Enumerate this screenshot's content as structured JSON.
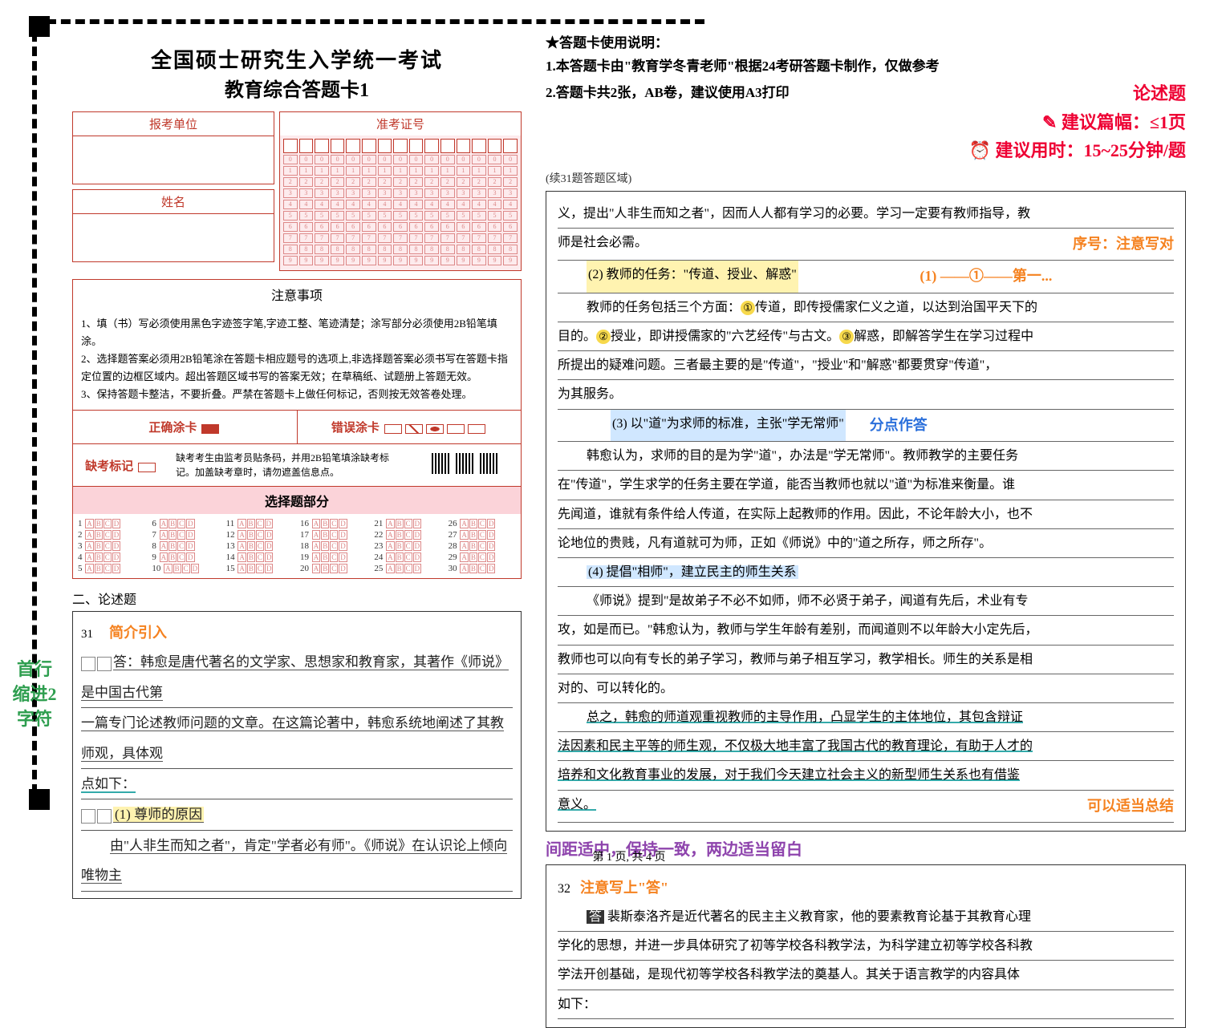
{
  "header": {
    "title_line1": "全国硕士研究生入学统一考试",
    "title_line2": "教育综合答题卡1"
  },
  "usage": {
    "star": "★答题卡使用说明：",
    "line1": "1.本答题卡由\"教育学冬青老师\"根据24考研答题卡制作，仅做参考",
    "line2": "2.答题卡共2张，AB卷，建议使用A3打印"
  },
  "annotations": {
    "essay_type": "论述题",
    "length_suggest": "建议篇幅：≤1页",
    "time_suggest": "建议用时：15~25分钟/题",
    "intro_label": "简介引入",
    "indent_label": "首行\n缩进2\n字符",
    "numbering_note": "序号：注意写对",
    "numbering_eg": "(1) ——①——第一...",
    "point_answer": "分点作答",
    "summary_ok": "可以适当总结",
    "margin_note": "间距适中，保持一致，两边适当留白",
    "write_da": "注意写上\"答\""
  },
  "form": {
    "unit_label": "报考单位",
    "exam_id_label": "准考证号",
    "name_label": "姓名"
  },
  "notice": {
    "title": "注意事项",
    "items": [
      "1、填（书）写必须使用黑色字迹签字笔,字迹工整、笔迹清楚；涂写部分必须使用2B铅笔填涂。",
      "2、选择题答案必须用2B铅笔涂在答题卡相应题号的选项上,非选择题答案必须书写在答题卡指定位置的边框区域内。超出答题区域书写的答案无效；在草稿纸、试题册上答题无效。",
      "3、保持答题卡整洁，不要折叠。严禁在答题卡上做任何标记，否则按无效答卷处理。"
    ]
  },
  "fill_example": {
    "correct": "正确涂卡",
    "wrong": "错误涂卡"
  },
  "absent": {
    "label": "缺考标记",
    "text": "缺考考生由监考员贴条码，并用2B铅笔填涂缺考标记。加盖缺考章时，请勿遮盖信息点。"
  },
  "choice_section": {
    "title": "选择题部分",
    "count": 30
  },
  "essay": {
    "section_label": "二、论述题",
    "q31": "31",
    "q32": "32",
    "continue_label": "(续31题答题区域)"
  },
  "handwritten_q31": {
    "l1": "答：韩愈是唐代著名的文学家、思想家和教育家，其著作《师说》是中国古代第",
    "l2": "一篇专门论述教师问题的文章。在这篇论著中，韩愈系统地阐述了其教师观，具体观",
    "l3": "点如下：",
    "p1": "(1) 尊师的原因",
    "l4": "由\"人非生而知之者\"，肯定\"学者必有师\"。《师说》在认识论上倾向唯物主"
  },
  "handwritten_cont": {
    "l1": "义，提出\"人非生而知之者\"，因而人人都有学习的必要。学习一定要有教师指导，教",
    "l2": "师是社会必需。",
    "p2": "(2) 教师的任务：\"传道、授业、解惑\"",
    "l3": "教师的任务包括三个方面：①传道，即传授儒家仁义之道，以达到治国平天下的",
    "l4": "目的。②授业，即讲授儒家的\"六艺经传\"与古文。③解惑，即解答学生在学习过程中",
    "l5": "所提出的疑难问题。三者最主要的是\"传道\"，\"授业\"和\"解惑\"都要贯穿\"传道\"，",
    "l6": "为其服务。",
    "p3": "(3) 以\"道\"为求师的标准，主张\"学无常师\"",
    "l7": "韩愈认为，求师的目的是为学\"道\"，办法是\"学无常师\"。教师教学的主要任务",
    "l8": "在\"传道\"，学生求学的任务主要在学道，能否当教师也就以\"道\"为标准来衡量。谁",
    "l9": "先闻道，谁就有条件给人传道，在实际上起教师的作用。因此，不论年龄大小，也不",
    "l10": "论地位的贵贱，凡有道就可为师，正如《师说》中的\"道之所存，师之所存\"。",
    "p4": "(4) 提倡\"相师\"，建立民主的师生关系",
    "l11": "《师说》提到\"是故弟子不必不如师，师不必贤于弟子，闻道有先后，术业有专",
    "l12": "攻，如是而已。\"韩愈认为，教师与学生年龄有差别，而闻道则不以年龄大小定先后，",
    "l13": "教师也可以向有专长的弟子学习，教师与弟子相互学习，教学相长。师生的关系是相",
    "l14": "对的、可以转化的。",
    "sum1": "总之，韩愈的师道观重视教师的主导作用，凸显学生的主体地位，其包含辩证",
    "sum2": "法因素和民主平等的师生观，不仅极大地丰富了我国古代的教育理论，有助于人才的",
    "sum3": "培养和文化教育事业的发展，对于我们今天建立社会主义的新型师生关系也有借鉴",
    "sum4": "意义。"
  },
  "handwritten_q32": {
    "l1": "答 裴斯泰洛齐是近代著名的民主主义教育家，他的要素教育论基于其教育心理",
    "l2": "学化的思想，并进一步具体研究了初等学校各科教学法，为科学建立初等学校各科教",
    "l3": "学法开创基础，是现代初等学校各科教学法的奠基人。其关于语言教学的内容具体",
    "l4": "如下："
  },
  "page_footer": "第 1 页, 共 4 页",
  "colors": {
    "red": "#c0392b",
    "pink": "#fbd3d9",
    "orange": "#f58220",
    "blue": "#2a6fdb",
    "green": "#2e9e4f",
    "purple": "#8e44ad",
    "highlight_yellow": "#fff3b0",
    "highlight_blue": "#d0e7ff",
    "teal": "#3aa89a"
  }
}
